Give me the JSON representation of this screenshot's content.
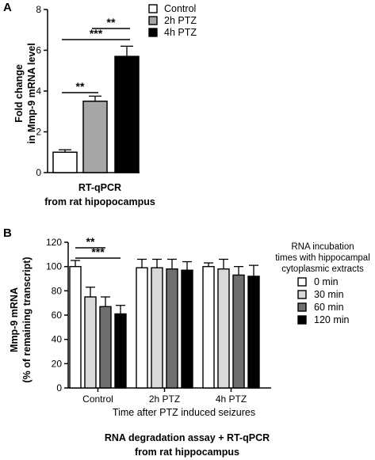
{
  "colors": {
    "white": "#ffffff",
    "light_gray": "#d9d9d9",
    "gray": "#a6a6a6",
    "dark_gray": "#6f6f6f",
    "black": "#000000"
  },
  "chart_data": [
    {
      "panel": "A",
      "type": "bar",
      "categories": [
        "Control",
        "2h PTZ",
        "4h PTZ"
      ],
      "values": [
        1.0,
        3.5,
        5.7
      ],
      "errors": [
        0.12,
        0.25,
        0.5
      ],
      "fill_colors": [
        "#ffffff",
        "#a6a6a6",
        "#000000"
      ],
      "ylabel_lines": [
        "Fold change",
        "in Mmp-9 mRNA level"
      ],
      "xlabel_lines": [
        "RT-qPCR",
        "from rat hipopocampus"
      ],
      "ylim": [
        0,
        8
      ],
      "yticks": [
        0,
        2,
        4,
        6,
        8
      ],
      "legend": {
        "position": "top-right",
        "entries": [
          {
            "label": "Control",
            "color": "#ffffff"
          },
          {
            "label": "2h PTZ",
            "color": "#a6a6a6"
          },
          {
            "label": "4h PTZ",
            "color": "#000000"
          }
        ]
      },
      "significance": [
        {
          "from": 0,
          "to": 1,
          "label": "**",
          "level": 1
        },
        {
          "from": 0,
          "to": 2,
          "label": "***",
          "level": 2
        },
        {
          "from": 1,
          "to": 2,
          "label": "**",
          "level": 3
        }
      ]
    },
    {
      "panel": "B",
      "type": "bar",
      "groups": [
        "Control",
        "2h PTZ",
        "4h PTZ"
      ],
      "series": [
        {
          "name": "0 min",
          "color": "#ffffff",
          "values": [
            100,
            99,
            100
          ],
          "errors": [
            5,
            7,
            3
          ]
        },
        {
          "name": "30 min",
          "color": "#d9d9d9",
          "values": [
            75,
            99,
            98
          ],
          "errors": [
            8,
            7,
            8
          ]
        },
        {
          "name": "60 min",
          "color": "#6f6f6f",
          "values": [
            67,
            98,
            93
          ],
          "errors": [
            8,
            8,
            7
          ]
        },
        {
          "name": "120 min",
          "color": "#000000",
          "values": [
            61,
            97,
            92
          ],
          "errors": [
            7,
            7,
            9
          ]
        }
      ],
      "ylabel_lines": [
        "Mmp-9 mRNA",
        "(% of remaining transcript)"
      ],
      "xlabel": "Time after PTZ induced seizures",
      "ylim": [
        0,
        120
      ],
      "yticks": [
        0,
        20,
        40,
        60,
        80,
        100,
        120
      ],
      "legend": {
        "position": "right",
        "title_lines": [
          "RNA incubation",
          "times with hippocampal",
          "cytoplasmic extracts"
        ]
      },
      "significance": [
        {
          "group": 0,
          "from": 0,
          "to": 2,
          "label": "**",
          "level": 1
        },
        {
          "group": 0,
          "from": 0,
          "to": 3,
          "label": "***",
          "level": 2
        }
      ],
      "caption_lines": [
        "RNA degradation assay + RT-qPCR",
        "from rat hippocampus"
      ]
    }
  ]
}
